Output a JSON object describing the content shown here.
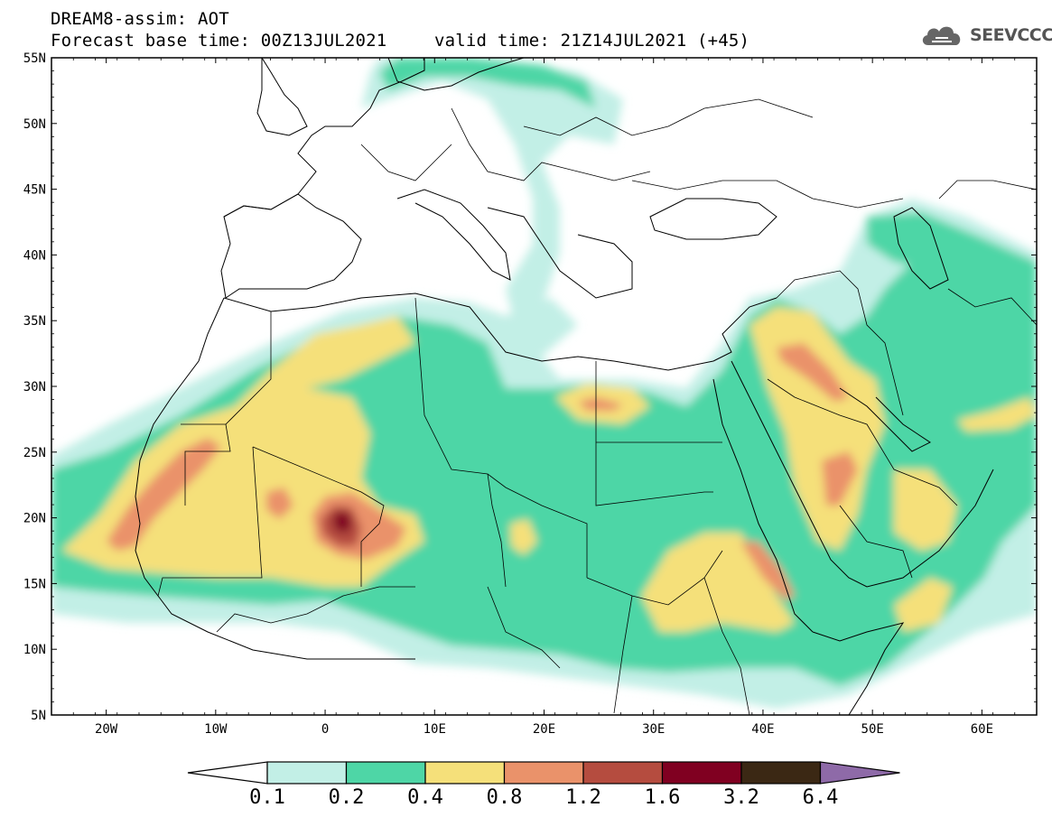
{
  "header": {
    "line1": "DREAM8-assim: AOT",
    "line2_base": "Forecast base time: 00Z13JUL2021",
    "line2_valid": "valid time: 21Z14JUL2021 (+45)"
  },
  "logo": {
    "icon": "cloud-logo-icon",
    "text": "SEEVCCC"
  },
  "axes": {
    "lon_range": [
      -25,
      65
    ],
    "lat_range": [
      5,
      55
    ],
    "lat_ticks": [
      {
        "value": 55,
        "label": "55N"
      },
      {
        "value": 50,
        "label": "50N"
      },
      {
        "value": 45,
        "label": "45N"
      },
      {
        "value": 40,
        "label": "40N"
      },
      {
        "value": 35,
        "label": "35N"
      },
      {
        "value": 30,
        "label": "30N"
      },
      {
        "value": 25,
        "label": "25N"
      },
      {
        "value": 20,
        "label": "20N"
      },
      {
        "value": 15,
        "label": "15N"
      },
      {
        "value": 10,
        "label": "10N"
      },
      {
        "value": 5,
        "label": "5N"
      }
    ],
    "lon_ticks": [
      {
        "value": -20,
        "label": "20W"
      },
      {
        "value": -10,
        "label": "10W"
      },
      {
        "value": 0,
        "label": "0"
      },
      {
        "value": 10,
        "label": "10E"
      },
      {
        "value": 20,
        "label": "20E"
      },
      {
        "value": 30,
        "label": "30E"
      },
      {
        "value": 40,
        "label": "40E"
      },
      {
        "value": 50,
        "label": "50E"
      },
      {
        "value": 60,
        "label": "60E"
      }
    ]
  },
  "colorbar": {
    "labels": [
      "0.1",
      "0.2",
      "0.4",
      "0.8",
      "1.2",
      "1.6",
      "3.2",
      "6.4"
    ],
    "colors": [
      "#ffffff",
      "#c2efe6",
      "#4ed6a6",
      "#f5e07a",
      "#ea926a",
      "#b54c3f",
      "#800021",
      "#3b2814",
      "#8e6aa8"
    ]
  }
}
